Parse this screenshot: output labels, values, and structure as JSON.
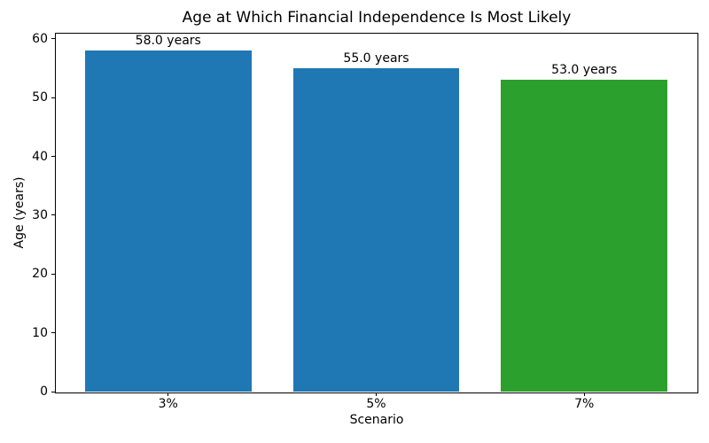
{
  "chart_data": {
    "type": "bar",
    "title": "Age at Which Financial Independence Is Most Likely",
    "xlabel": "Scenario",
    "ylabel": "Age (years)",
    "categories": [
      "3%",
      "5%",
      "7%"
    ],
    "values": [
      58.0,
      55.0,
      53.0
    ],
    "bar_labels": [
      "58.0 years",
      "55.0 years",
      "53.0 years"
    ],
    "bar_colors": [
      "#1f77b4",
      "#1f77b4",
      "#2ca02c"
    ],
    "yticks": [
      0,
      10,
      20,
      30,
      40,
      50,
      60
    ],
    "ylim": [
      0,
      60.9
    ],
    "grid": false,
    "legend_position": "none"
  }
}
